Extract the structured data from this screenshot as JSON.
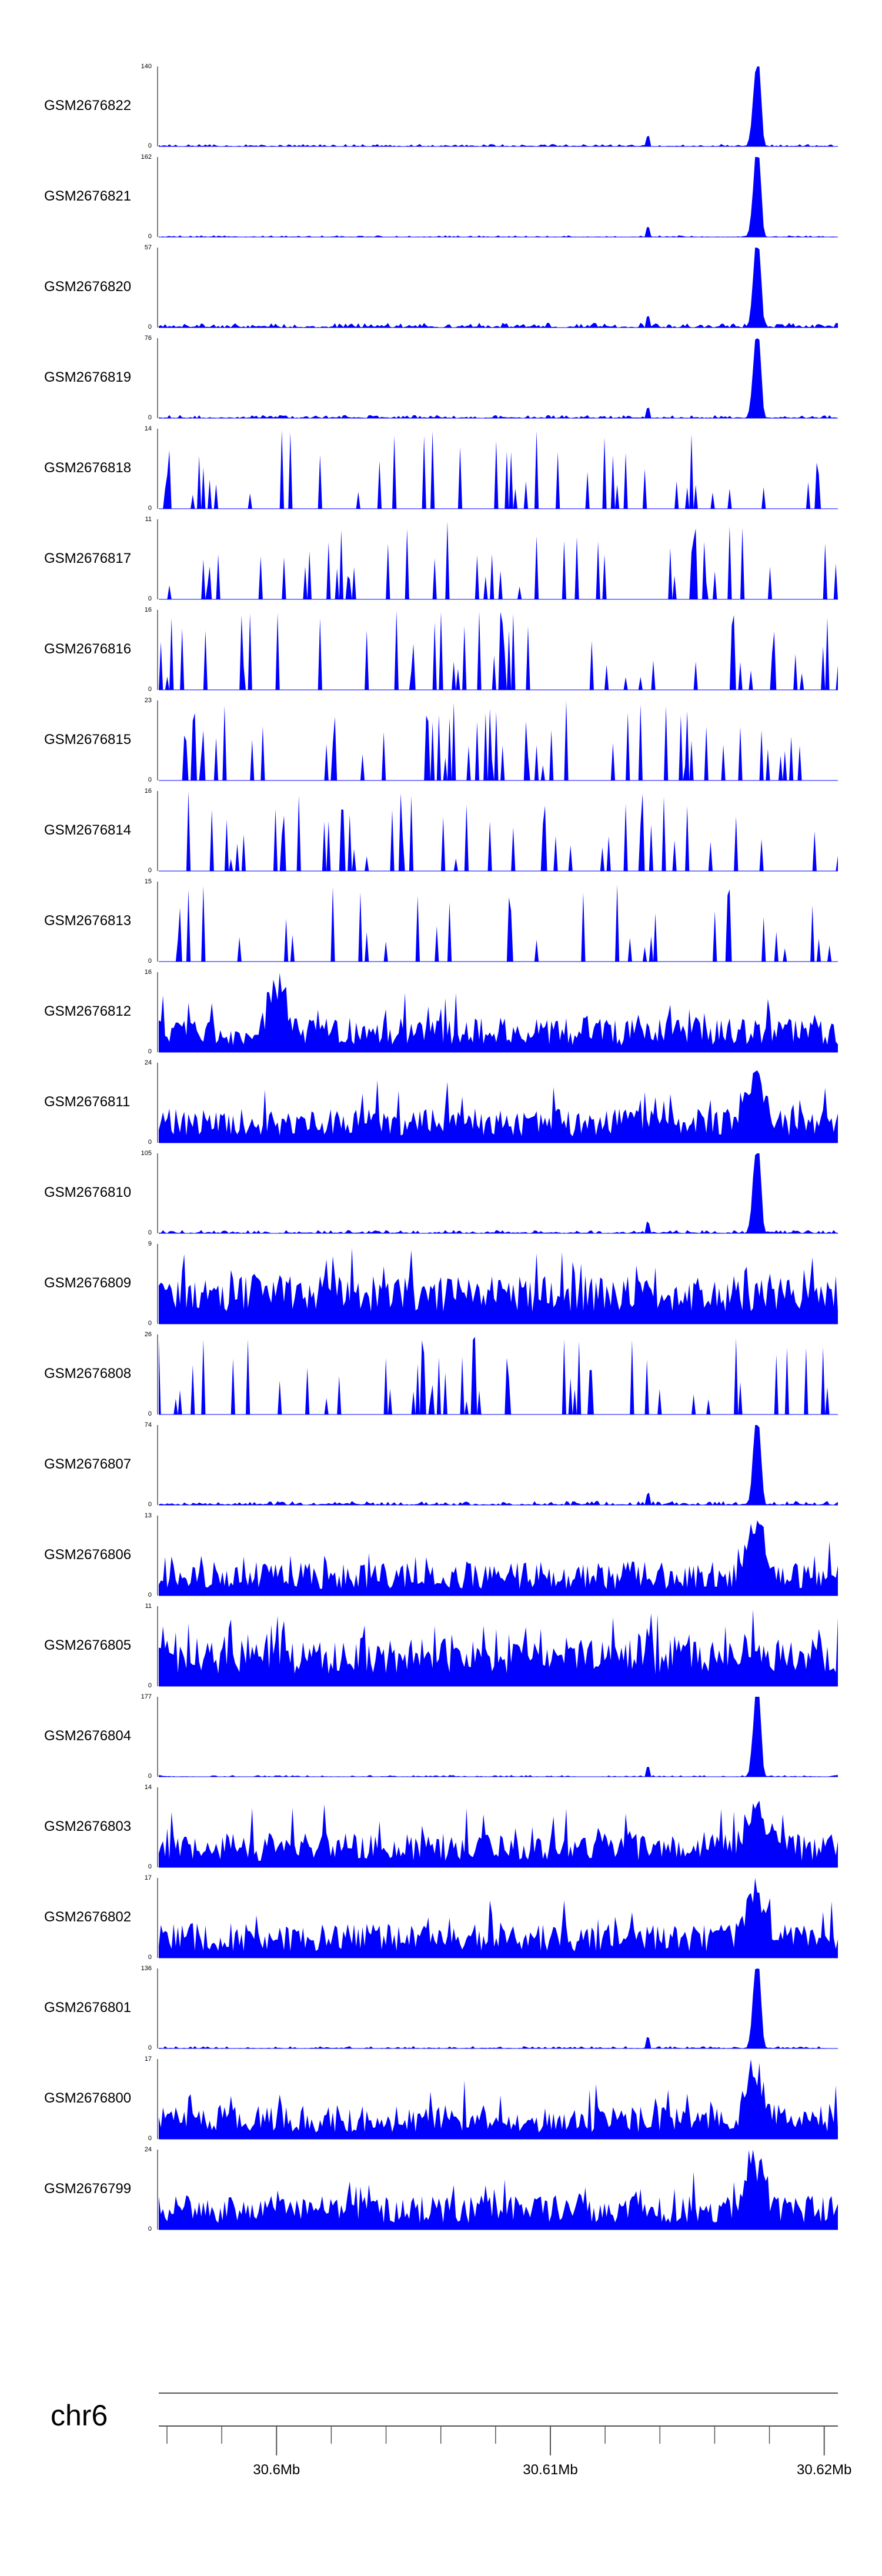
{
  "colors": {
    "signal": "#0000ff",
    "axis": "#555555"
  },
  "chart_data": {
    "type": "area",
    "title": "",
    "region": {
      "chromosome": "chr6",
      "start_mb": 30.5957,
      "end_mb": 30.6205
    },
    "x_axis": {
      "ticks_mb": [
        30.6,
        30.61,
        30.62
      ],
      "tick_labels": [
        "30.6Mb",
        "30.61Mb",
        "30.62Mb"
      ],
      "minor_tick_step_mb": 0.002
    },
    "tracks": [
      {
        "name": "GSM2676822",
        "ymax": "140",
        "ymin": "0",
        "profile": "peak_dominant",
        "peak_mb": 30.6175,
        "noise": 0.03,
        "seed": 1
      },
      {
        "name": "GSM2676821",
        "ymax": "162",
        "ymin": "0",
        "profile": "peak_dominant",
        "peak_mb": 30.6175,
        "noise": 0.02,
        "seed": 2
      },
      {
        "name": "GSM2676820",
        "ymax": "57",
        "ymin": "0",
        "profile": "peak_dominant",
        "peak_mb": 30.6175,
        "noise": 0.06,
        "seed": 3
      },
      {
        "name": "GSM2676819",
        "ymax": "76",
        "ymin": "0",
        "profile": "peak_dominant",
        "peak_mb": 30.6175,
        "noise": 0.04,
        "seed": 4
      },
      {
        "name": "GSM2676818",
        "ymax": "14",
        "ymin": "0",
        "profile": "sparse",
        "seed": 5
      },
      {
        "name": "GSM2676817",
        "ymax": "11",
        "ymin": "0",
        "profile": "sparse",
        "seed": 6
      },
      {
        "name": "GSM2676816",
        "ymax": "16",
        "ymin": "0",
        "profile": "sparse",
        "seed": 7
      },
      {
        "name": "GSM2676815",
        "ymax": "23",
        "ymin": "0",
        "profile": "sparse",
        "seed": 8
      },
      {
        "name": "GSM2676814",
        "ymax": "16",
        "ymin": "0",
        "profile": "sparse",
        "seed": 9
      },
      {
        "name": "GSM2676813",
        "ymax": "15",
        "ymin": "0",
        "profile": "sparse",
        "seed": 10
      },
      {
        "name": "GSM2676812",
        "ymax": "16",
        "ymin": "0",
        "profile": "noisy",
        "peak_mb": 30.6,
        "seed": 11
      },
      {
        "name": "GSM2676811",
        "ymax": "24",
        "ymin": "0",
        "profile": "noisy",
        "peak_mb": 30.6175,
        "seed": 12
      },
      {
        "name": "GSM2676810",
        "ymax": "105",
        "ymin": "0",
        "profile": "peak_dominant",
        "peak_mb": 30.6175,
        "noise": 0.04,
        "seed": 13
      },
      {
        "name": "GSM2676809",
        "ymax": "9",
        "ymin": "0",
        "profile": "dense",
        "seed": 14
      },
      {
        "name": "GSM2676808",
        "ymax": "26",
        "ymin": "0",
        "profile": "sparse",
        "seed": 15
      },
      {
        "name": "GSM2676807",
        "ymax": "74",
        "ymin": "0",
        "profile": "peak_dominant",
        "peak_mb": 30.6175,
        "noise": 0.05,
        "seed": 16
      },
      {
        "name": "GSM2676806",
        "ymax": "13",
        "ymin": "0",
        "profile": "noisy",
        "peak_mb": 30.6175,
        "seed": 17
      },
      {
        "name": "GSM2676805",
        "ymax": "11",
        "ymin": "0",
        "profile": "dense",
        "seed": 18
      },
      {
        "name": "GSM2676804",
        "ymax": "177",
        "ymin": "0",
        "profile": "peak_dominant",
        "peak_mb": 30.6175,
        "noise": 0.02,
        "seed": 19
      },
      {
        "name": "GSM2676803",
        "ymax": "14",
        "ymin": "0",
        "profile": "noisy",
        "peak_mb": 30.6175,
        "seed": 20
      },
      {
        "name": "GSM2676802",
        "ymax": "17",
        "ymin": "0",
        "profile": "noisy",
        "peak_mb": 30.6175,
        "seed": 21
      },
      {
        "name": "GSM2676801",
        "ymax": "136",
        "ymin": "0",
        "profile": "peak_dominant",
        "peak_mb": 30.6175,
        "noise": 0.03,
        "seed": 22
      },
      {
        "name": "GSM2676800",
        "ymax": "17",
        "ymin": "0",
        "profile": "noisy",
        "peak_mb": 30.6175,
        "seed": 23
      },
      {
        "name": "GSM2676799",
        "ymax": "24",
        "ymin": "0",
        "profile": "noisy",
        "peak_mb": 30.6175,
        "seed": 24
      }
    ]
  }
}
